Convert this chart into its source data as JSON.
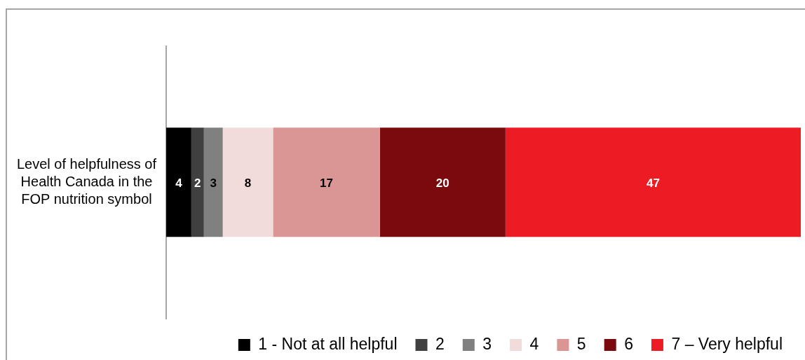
{
  "chart_data": {
    "type": "bar",
    "orientation": "horizontal",
    "stacked": true,
    "categories": [
      "Level of helpfulness of Health Canada in the FOP nutrition symbol"
    ],
    "series": [
      {
        "name": "1 - Not at all helpful",
        "color": "#000000",
        "values": [
          4
        ]
      },
      {
        "name": "2",
        "color": "#404040",
        "values": [
          2
        ]
      },
      {
        "name": "3",
        "color": "#808080",
        "values": [
          3
        ]
      },
      {
        "name": "4",
        "color": "#f2dcdb",
        "values": [
          8
        ]
      },
      {
        "name": "5",
        "color": "#da9694",
        "values": [
          17
        ]
      },
      {
        "name": "6",
        "color": "#7b0a0f",
        "values": [
          20
        ]
      },
      {
        "name": "7 – Very helpful",
        "color": "#ed1c24",
        "values": [
          47
        ]
      }
    ],
    "xlim": [
      0,
      101
    ],
    "data_labels": true,
    "legend": "bottom"
  }
}
